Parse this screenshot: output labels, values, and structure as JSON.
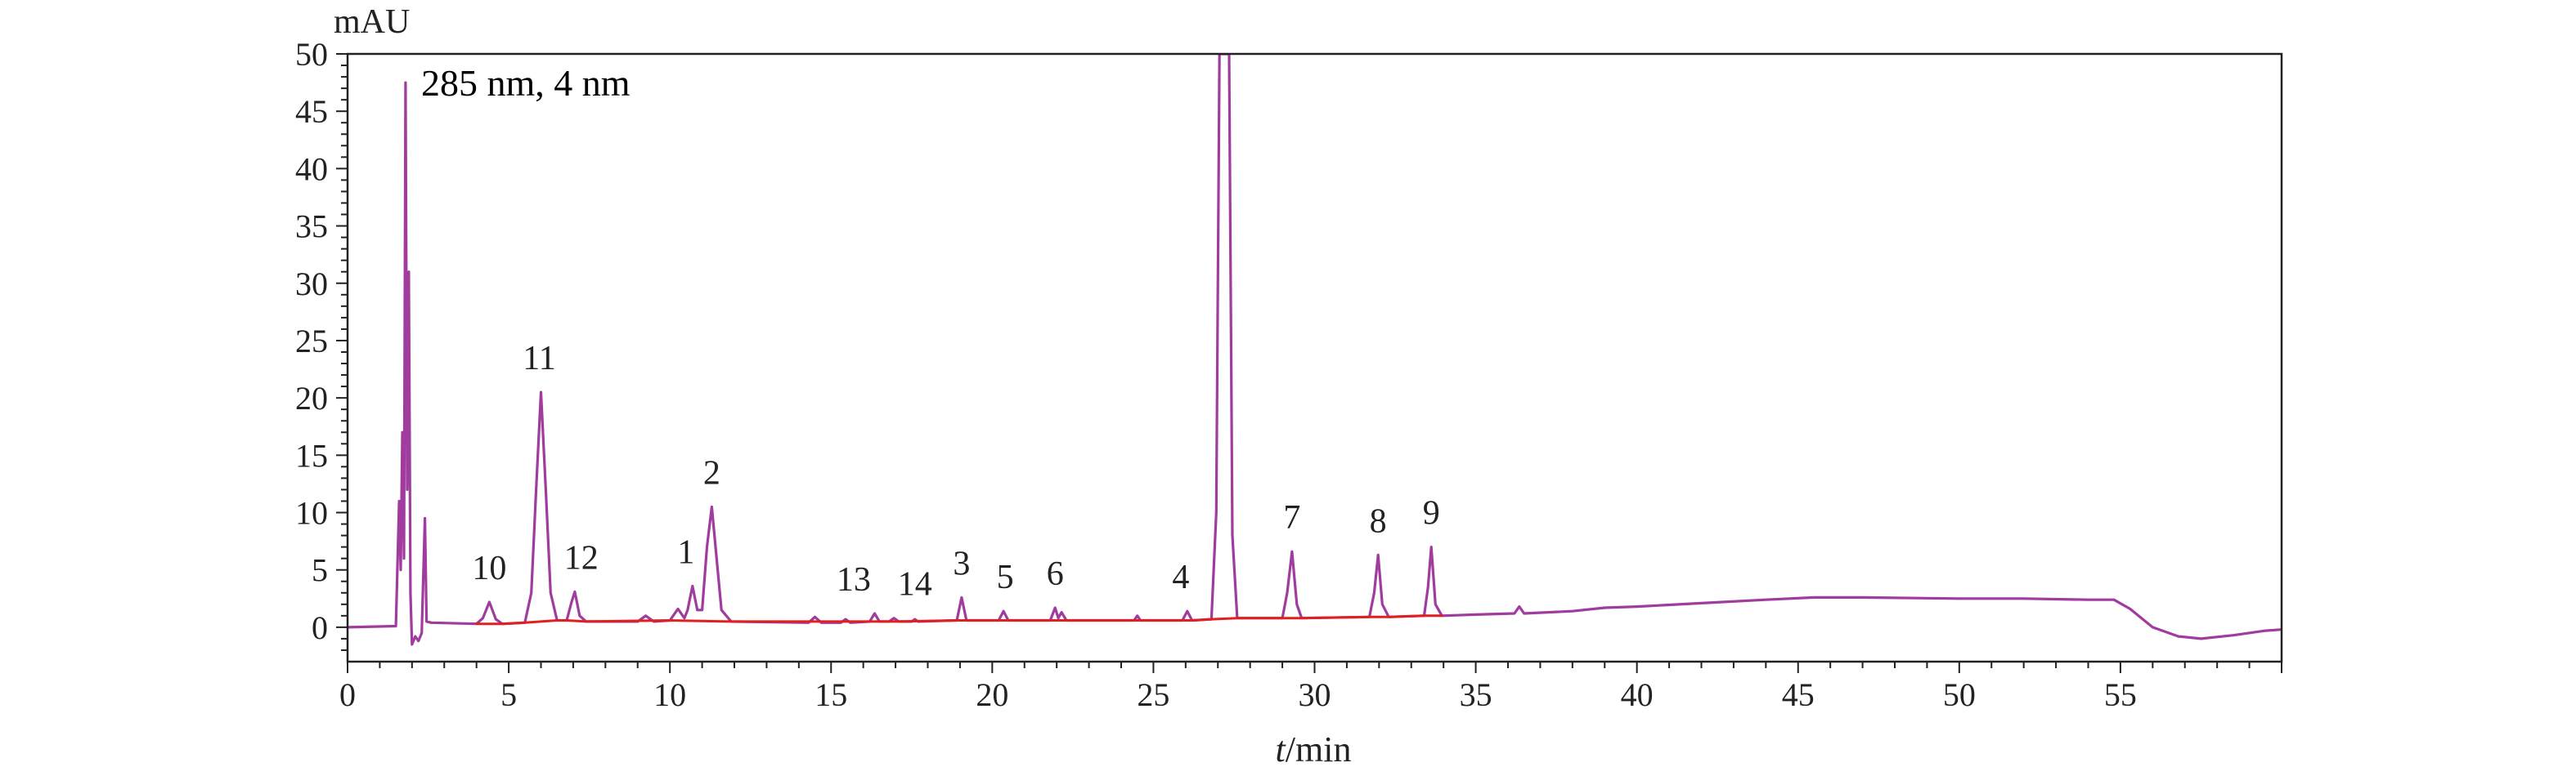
{
  "chart_data": {
    "type": "line",
    "y_unit_label": "mAU",
    "xlabel_italic": "t",
    "xlabel_rest": "/min",
    "annotation": "285 nm, 4 nm",
    "xlim": [
      0,
      60
    ],
    "ylim": [
      -3,
      50
    ],
    "x_ticks": [
      0,
      5,
      10,
      15,
      20,
      25,
      30,
      35,
      40,
      45,
      50,
      55
    ],
    "x_tick_labels": [
      "0",
      "5",
      "10",
      "15",
      "20",
      "25",
      "30",
      "35",
      "40",
      "45",
      "50",
      "55"
    ],
    "y_ticks": [
      0,
      5,
      10,
      15,
      20,
      25,
      30,
      35,
      40,
      45,
      50
    ],
    "y_tick_labels": [
      "0",
      "5",
      "10",
      "15",
      "20",
      "25",
      "30",
      "35",
      "40",
      "45",
      "50"
    ],
    "grid": false,
    "colors": {
      "signal": "#a03c9e",
      "baseline": "#e02020",
      "axis": "#222222"
    },
    "series": [
      {
        "role": "signal",
        "points": [
          [
            0,
            0
          ],
          [
            1.5,
            0.1
          ],
          [
            1.6,
            11
          ],
          [
            1.65,
            5
          ],
          [
            1.7,
            17
          ],
          [
            1.75,
            6
          ],
          [
            1.8,
            47.5
          ],
          [
            1.85,
            12
          ],
          [
            1.9,
            31
          ],
          [
            1.95,
            3
          ],
          [
            2.0,
            -1.5
          ],
          [
            2.1,
            -0.8
          ],
          [
            2.2,
            -1.2
          ],
          [
            2.3,
            -0.5
          ],
          [
            2.4,
            9.5
          ],
          [
            2.45,
            0.5
          ],
          [
            2.6,
            0.4
          ],
          [
            4.0,
            0.3
          ],
          [
            4.2,
            0.8
          ],
          [
            4.4,
            2.2
          ],
          [
            4.6,
            0.7
          ],
          [
            4.8,
            0.3
          ],
          [
            5.5,
            0.4
          ],
          [
            5.7,
            3
          ],
          [
            5.85,
            12
          ],
          [
            6.0,
            20.5
          ],
          [
            6.15,
            12
          ],
          [
            6.3,
            3
          ],
          [
            6.5,
            0.6
          ],
          [
            6.8,
            0.6
          ],
          [
            6.95,
            2.2
          ],
          [
            7.05,
            3.1
          ],
          [
            7.2,
            1
          ],
          [
            7.4,
            0.5
          ],
          [
            9.0,
            0.5
          ],
          [
            9.25,
            1
          ],
          [
            9.5,
            0.5
          ],
          [
            10.0,
            0.6
          ],
          [
            10.25,
            1.6
          ],
          [
            10.45,
            0.8
          ],
          [
            10.55,
            1.5
          ],
          [
            10.7,
            3.6
          ],
          [
            10.85,
            1.5
          ],
          [
            11.0,
            1.5
          ],
          [
            11.15,
            7
          ],
          [
            11.3,
            10.5
          ],
          [
            11.45,
            6
          ],
          [
            11.6,
            1.5
          ],
          [
            11.9,
            0.5
          ],
          [
            14.3,
            0.4
          ],
          [
            14.5,
            0.9
          ],
          [
            14.7,
            0.4
          ],
          [
            15.3,
            0.4
          ],
          [
            15.45,
            0.7
          ],
          [
            15.6,
            0.4
          ],
          [
            16.2,
            0.5
          ],
          [
            16.35,
            1.2
          ],
          [
            16.5,
            0.5
          ],
          [
            16.8,
            0.5
          ],
          [
            16.95,
            0.8
          ],
          [
            17.1,
            0.5
          ],
          [
            17.5,
            0.5
          ],
          [
            17.6,
            0.7
          ],
          [
            17.7,
            0.5
          ],
          [
            18.9,
            0.6
          ],
          [
            19.05,
            2.6
          ],
          [
            19.2,
            0.6
          ],
          [
            20.2,
            0.6
          ],
          [
            20.35,
            1.4
          ],
          [
            20.5,
            0.6
          ],
          [
            21.8,
            0.6
          ],
          [
            21.95,
            1.7
          ],
          [
            22.05,
            0.8
          ],
          [
            22.15,
            1.3
          ],
          [
            22.3,
            0.6
          ],
          [
            24.4,
            0.6
          ],
          [
            24.5,
            1
          ],
          [
            24.6,
            0.6
          ],
          [
            25.9,
            0.6
          ],
          [
            26.05,
            1.4
          ],
          [
            26.2,
            0.6
          ],
          [
            26.8,
            0.7
          ],
          [
            26.95,
            10
          ],
          [
            27.05,
            50
          ],
          [
            27.35,
            50
          ],
          [
            27.45,
            8
          ],
          [
            27.6,
            0.8
          ],
          [
            29.0,
            0.8
          ],
          [
            29.15,
            3
          ],
          [
            29.3,
            6.6
          ],
          [
            29.45,
            2
          ],
          [
            29.6,
            0.8
          ],
          [
            31.7,
            0.9
          ],
          [
            31.85,
            3
          ],
          [
            31.97,
            6.3
          ],
          [
            32.1,
            2
          ],
          [
            32.3,
            0.9
          ],
          [
            33.4,
            1.0
          ],
          [
            33.52,
            3.5
          ],
          [
            33.62,
            7.0
          ],
          [
            33.75,
            2
          ],
          [
            33.95,
            1.0
          ],
          [
            35.0,
            1.1
          ],
          [
            36.2,
            1.2
          ],
          [
            36.35,
            1.8
          ],
          [
            36.5,
            1.2
          ],
          [
            38,
            1.4
          ],
          [
            39,
            1.7
          ],
          [
            40,
            1.8
          ],
          [
            42,
            2.1
          ],
          [
            44,
            2.4
          ],
          [
            45.5,
            2.6
          ],
          [
            47,
            2.6
          ],
          [
            50,
            2.5
          ],
          [
            52,
            2.5
          ],
          [
            54,
            2.4
          ],
          [
            54.8,
            2.4
          ],
          [
            55.3,
            1.6
          ],
          [
            56.0,
            0
          ],
          [
            56.8,
            -0.8
          ],
          [
            57.5,
            -1
          ],
          [
            58.5,
            -0.7
          ],
          [
            59.5,
            -0.3
          ],
          [
            60,
            -0.2
          ]
        ]
      },
      {
        "role": "baseline",
        "points": [
          [
            4.0,
            0.3
          ],
          [
            4.8,
            0.3
          ],
          [
            5.5,
            0.4
          ],
          [
            6.5,
            0.6
          ],
          [
            6.8,
            0.6
          ],
          [
            7.4,
            0.5
          ],
          [
            10.0,
            0.6
          ],
          [
            11.9,
            0.5
          ],
          [
            16.2,
            0.5
          ],
          [
            17.1,
            0.5
          ],
          [
            18.9,
            0.6
          ],
          [
            19.2,
            0.6
          ],
          [
            20.2,
            0.6
          ],
          [
            20.5,
            0.6
          ],
          [
            21.8,
            0.6
          ],
          [
            22.3,
            0.6
          ],
          [
            25.9,
            0.6
          ],
          [
            26.2,
            0.6
          ],
          [
            26.8,
            0.7
          ],
          [
            27.6,
            0.8
          ],
          [
            29.0,
            0.8
          ],
          [
            29.6,
            0.8
          ],
          [
            31.7,
            0.9
          ],
          [
            32.3,
            0.9
          ],
          [
            33.4,
            1.0
          ],
          [
            33.95,
            1.0
          ]
        ]
      }
    ],
    "peaks": [
      {
        "label": "10",
        "x": 4.4,
        "y": 2.2
      },
      {
        "label": "11",
        "x": 5.95,
        "y": 20.5
      },
      {
        "label": "12",
        "x": 7.25,
        "y": 3.1
      },
      {
        "label": "1",
        "x": 10.5,
        "y": 3.6
      },
      {
        "label": "2",
        "x": 11.3,
        "y": 10.5
      },
      {
        "label": "13",
        "x": 15.7,
        "y": 1.2
      },
      {
        "label": "14",
        "x": 17.6,
        "y": 0.8
      },
      {
        "label": "3",
        "x": 19.05,
        "y": 2.6
      },
      {
        "label": "5",
        "x": 20.4,
        "y": 1.4
      },
      {
        "label": "6",
        "x": 21.95,
        "y": 1.7
      },
      {
        "label": "4",
        "x": 25.85,
        "y": 1.4
      },
      {
        "label": "7",
        "x": 29.3,
        "y": 6.6
      },
      {
        "label": "8",
        "x": 31.97,
        "y": 6.3
      },
      {
        "label": "9",
        "x": 33.62,
        "y": 7.0
      }
    ]
  }
}
